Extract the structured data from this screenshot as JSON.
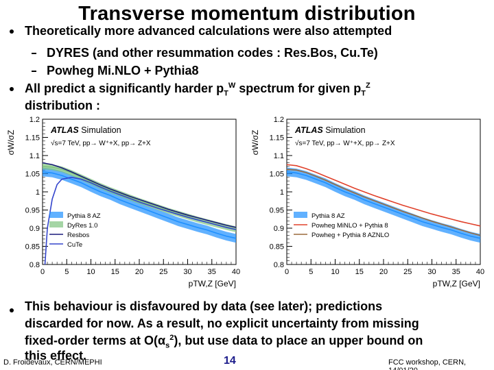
{
  "slide": {
    "title": "Transverse momentum distribution",
    "bullets": {
      "b1": "Theoretically more advanced calculations were also attempted",
      "s1": "DYRES (and other resummation codes : Res.Bos, Cu.Te)",
      "s2": "Powheg Mi.NLO + Pythia8",
      "b2_pre": "All predict a significantly harder p",
      "b2_sub1": "T",
      "b2_sup1": "W",
      "b2_mid": " spectrum for given p",
      "b2_sub2": "T",
      "b2_sup2": "Z",
      "b2_line2": "distribution :",
      "b3_line1": "This behaviour is disfavoured by data (see later); predictions",
      "b3_line2": "discarded for now. As a result, no explicit uncertainty from missing",
      "b3_line3_pre": "fixed-order terms at O(",
      "b3_alpha": "α",
      "b3_sub": "s",
      "b3_sup": "2",
      "b3_line3_post": "), but use data to place an upper bound on",
      "b3_line4": "this effect."
    },
    "footer": {
      "author": "D. Froidevaux, CERN/MEPHI",
      "page": "14",
      "event": "FCC workshop, CERN, 14/01/20"
    }
  },
  "charts": {
    "left": {
      "brand": "ATLAS",
      "label": "Simulation",
      "process": "√s=7 TeV, pp→ W⁺+X, pp→ Z+X",
      "ylabel": "σW/σZ",
      "xlabel": "pTW,Z [GeV]",
      "legend": [
        "Pythia 8 AZ",
        "DyRes 1.0",
        "Resbos",
        "CuTe"
      ]
    },
    "right": {
      "brand": "ATLAS",
      "label": "Simulation",
      "process": "√s=7 TeV, pp→ W⁺+X, pp→ Z+X",
      "ylabel": "σW/σZ",
      "xlabel": "pTW,Z [GeV]",
      "legend": [
        "Pythia 8 AZ",
        "Powheg MiNLO + Pythia 8",
        "Powheg + Pythia 8 AZNLO"
      ]
    }
  },
  "chart_data": [
    {
      "type": "line",
      "xlabel": "pTW,Z [GeV]",
      "ylabel": "σW/σZ",
      "xlim": [
        0,
        40
      ],
      "ylim": [
        0.8,
        1.2
      ],
      "xticks": [
        0,
        5,
        10,
        15,
        20,
        25,
        30,
        35,
        40
      ],
      "yticks": [
        0.8,
        0.85,
        0.9,
        0.95,
        1,
        1.05,
        1.1,
        1.15,
        1.2
      ],
      "series": [
        {
          "name": "Pythia 8 AZ",
          "x": [
            0,
            2,
            4,
            6,
            8,
            10,
            12,
            14,
            16,
            18,
            20,
            22,
            24,
            26,
            28,
            30,
            32,
            34,
            36,
            38,
            40
          ],
          "values": [
            1.055,
            1.052,
            1.045,
            1.035,
            1.025,
            1.012,
            1.0,
            0.99,
            0.978,
            0.968,
            0.958,
            0.948,
            0.938,
            0.928,
            0.918,
            0.91,
            0.902,
            0.895,
            0.886,
            0.878,
            0.872
          ],
          "style": "band",
          "color": "#1e90ff"
        },
        {
          "name": "DyRes 1.0",
          "x": [
            0,
            2,
            4,
            6,
            8,
            10,
            12,
            14,
            16,
            18,
            20,
            22,
            24,
            26,
            28,
            30,
            32,
            34,
            36,
            38,
            40
          ],
          "values": [
            1.07,
            1.068,
            1.062,
            1.052,
            1.04,
            1.028,
            1.016,
            1.005,
            0.995,
            0.985,
            0.975,
            0.966,
            0.957,
            0.948,
            0.94,
            0.932,
            0.924,
            0.917,
            0.91,
            0.903,
            0.897
          ],
          "style": "band",
          "color": "#7fc37f"
        },
        {
          "name": "Resbos",
          "x": [
            0,
            2,
            4,
            6,
            8,
            10,
            12,
            14,
            16,
            18,
            20,
            22,
            24,
            26,
            28,
            30,
            32,
            34,
            36,
            38,
            40
          ],
          "values": [
            1.08,
            1.075,
            1.066,
            1.055,
            1.043,
            1.031,
            1.019,
            1.008,
            0.998,
            0.988,
            0.979,
            0.97,
            0.961,
            0.952,
            0.944,
            0.936,
            0.929,
            0.922,
            0.915,
            0.908,
            0.902
          ],
          "color": "#1a1a7a"
        },
        {
          "name": "CuTe",
          "x": [
            0.5,
            1,
            2,
            3,
            4,
            6,
            8,
            10,
            12,
            14,
            16,
            18,
            20,
            22,
            24,
            26,
            28,
            30,
            32,
            34,
            36,
            38,
            40
          ],
          "values": [
            0.8,
            0.9,
            0.98,
            1.02,
            1.035,
            1.04,
            1.035,
            1.025,
            1.013,
            1.002,
            0.992,
            0.982,
            0.972,
            0.963,
            0.954,
            0.946,
            0.938,
            0.93,
            0.923,
            0.916,
            0.909,
            0.902,
            0.896
          ],
          "color": "#3344cc"
        }
      ]
    },
    {
      "type": "line",
      "xlabel": "pTW,Z [GeV]",
      "ylabel": "σW/σZ",
      "xlim": [
        0,
        40
      ],
      "ylim": [
        0.8,
        1.2
      ],
      "xticks": [
        0,
        5,
        10,
        15,
        20,
        25,
        30,
        35,
        40
      ],
      "yticks": [
        0.8,
        0.85,
        0.9,
        0.95,
        1,
        1.05,
        1.1,
        1.15,
        1.2
      ],
      "series": [
        {
          "name": "Pythia 8 AZ",
          "x": [
            0,
            2,
            4,
            6,
            8,
            10,
            12,
            14,
            16,
            18,
            20,
            22,
            24,
            26,
            28,
            30,
            32,
            34,
            36,
            38,
            40
          ],
          "values": [
            1.055,
            1.052,
            1.045,
            1.035,
            1.025,
            1.012,
            1.0,
            0.99,
            0.978,
            0.968,
            0.958,
            0.948,
            0.938,
            0.928,
            0.918,
            0.91,
            0.902,
            0.895,
            0.886,
            0.878,
            0.872
          ],
          "style": "band",
          "color": "#1e90ff"
        },
        {
          "name": "Powheg MiNLO + Pythia 8",
          "x": [
            0,
            2,
            4,
            6,
            8,
            10,
            12,
            14,
            16,
            18,
            20,
            22,
            24,
            26,
            28,
            30,
            32,
            34,
            36,
            38,
            40
          ],
          "values": [
            1.075,
            1.072,
            1.064,
            1.054,
            1.043,
            1.032,
            1.021,
            1.01,
            1.0,
            0.99,
            0.981,
            0.972,
            0.963,
            0.955,
            0.947,
            0.939,
            0.932,
            0.925,
            0.918,
            0.912,
            0.906
          ],
          "color": "#e0402a"
        },
        {
          "name": "Powheg + Pythia 8 AZNLO",
          "x": [
            0,
            2,
            4,
            6,
            8,
            10,
            12,
            14,
            16,
            18,
            20,
            22,
            24,
            26,
            28,
            30,
            32,
            34,
            36,
            38,
            40
          ],
          "values": [
            1.062,
            1.06,
            1.053,
            1.043,
            1.032,
            1.02,
            1.008,
            0.997,
            0.986,
            0.976,
            0.966,
            0.956,
            0.946,
            0.937,
            0.928,
            0.919,
            0.911,
            0.903,
            0.895,
            0.887,
            0.88
          ],
          "color": "#9a6a3a"
        }
      ]
    }
  ]
}
